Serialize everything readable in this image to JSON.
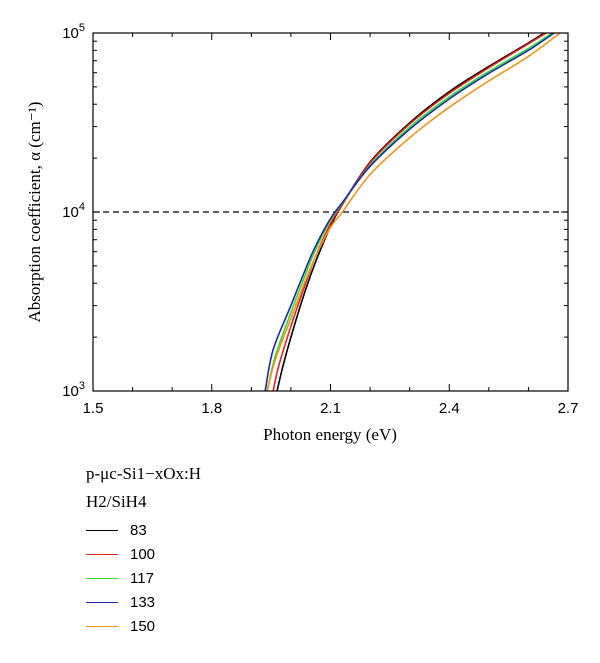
{
  "chart_data": {
    "type": "line",
    "title": "",
    "xlabel": "Photon energy (eV)",
    "ylabel": "Absorption coefficient, α (cm⁻¹)",
    "xlim": [
      1.5,
      2.7
    ],
    "ylim": [
      1000,
      100000
    ],
    "yscale": "log",
    "x_ticks": [
      1.5,
      1.8,
      2.1,
      2.4,
      2.7
    ],
    "x_tick_labels": [
      "1.5",
      "1.8",
      "2.1",
      "2.4",
      "2.7"
    ],
    "y_ticks": [
      1000,
      10000,
      100000
    ],
    "y_tick_labels": [
      {
        "base": "10",
        "exp": "3"
      },
      {
        "base": "10",
        "exp": "4"
      },
      {
        "base": "10",
        "exp": "5"
      }
    ],
    "reference_line": {
      "y": 10000,
      "style": "dashed"
    },
    "legend": {
      "placement": "below",
      "title_line1": "p-μc-Si1−xOx:H",
      "title_line2": "H2/SiH4"
    },
    "series": [
      {
        "name": "83",
        "color": "#000000",
        "points": [
          [
            1.965,
            1000
          ],
          [
            1.98,
            1380
          ],
          [
            2.0,
            2000
          ],
          [
            2.03,
            3300
          ],
          [
            2.06,
            5100
          ],
          [
            2.1,
            8300
          ],
          [
            2.13,
            11000
          ],
          [
            2.2,
            19000
          ],
          [
            2.3,
            31500
          ],
          [
            2.4,
            47000
          ],
          [
            2.5,
            65000
          ],
          [
            2.6,
            88000
          ],
          [
            2.64,
            100000
          ]
        ]
      },
      {
        "name": "100",
        "color": "#e8221b",
        "points": [
          [
            1.955,
            1000
          ],
          [
            1.97,
            1400
          ],
          [
            2.0,
            2300
          ],
          [
            2.03,
            3600
          ],
          [
            2.06,
            5500
          ],
          [
            2.1,
            8600
          ],
          [
            2.13,
            11000
          ],
          [
            2.2,
            18800
          ],
          [
            2.3,
            31000
          ],
          [
            2.4,
            46000
          ],
          [
            2.5,
            64000
          ],
          [
            2.6,
            87000
          ],
          [
            2.645,
            100000
          ]
        ]
      },
      {
        "name": "117",
        "color": "#33dd33",
        "points": [
          [
            1.94,
            1000
          ],
          [
            1.96,
            1550
          ],
          [
            2.0,
            2750
          ],
          [
            2.03,
            4100
          ],
          [
            2.06,
            6000
          ],
          [
            2.1,
            9000
          ],
          [
            2.13,
            11200
          ],
          [
            2.2,
            18200
          ],
          [
            2.3,
            29800
          ],
          [
            2.4,
            44000
          ],
          [
            2.5,
            61000
          ],
          [
            2.6,
            82000
          ],
          [
            2.66,
            100000
          ]
        ]
      },
      {
        "name": "133",
        "color": "#1a2aa8",
        "points": [
          [
            1.935,
            1000
          ],
          [
            1.955,
            1700
          ],
          [
            2.0,
            3000
          ],
          [
            2.03,
            4400
          ],
          [
            2.06,
            6300
          ],
          [
            2.1,
            9200
          ],
          [
            2.13,
            11300
          ],
          [
            2.2,
            18000
          ],
          [
            2.3,
            29000
          ],
          [
            2.4,
            42800
          ],
          [
            2.5,
            59500
          ],
          [
            2.6,
            80000
          ],
          [
            2.665,
            100000
          ]
        ]
      },
      {
        "name": "150",
        "color": "#f0941e",
        "points": [
          [
            1.94,
            1000
          ],
          [
            1.96,
            1480
          ],
          [
            2.0,
            2550
          ],
          [
            2.03,
            3800
          ],
          [
            2.06,
            5500
          ],
          [
            2.1,
            8200
          ],
          [
            2.13,
            10000
          ],
          [
            2.2,
            16200
          ],
          [
            2.3,
            26000
          ],
          [
            2.4,
            38500
          ],
          [
            2.5,
            54000
          ],
          [
            2.6,
            74000
          ],
          [
            2.68,
            100000
          ]
        ]
      }
    ]
  }
}
